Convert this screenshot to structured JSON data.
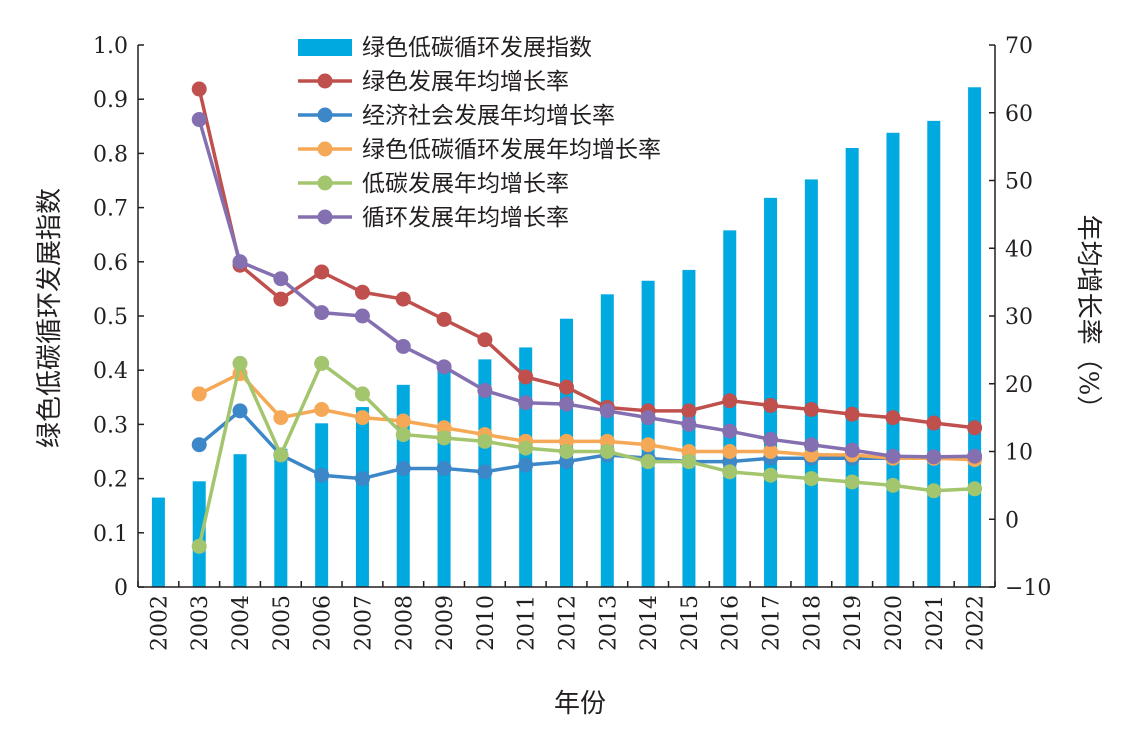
{
  "chart_data": {
    "type": "bar+line",
    "categories": [
      "2002",
      "2003",
      "2004",
      "2005",
      "2006",
      "2007",
      "2008",
      "2009",
      "2010",
      "2011",
      "2012",
      "2013",
      "2014",
      "2015",
      "2016",
      "2017",
      "2018",
      "2019",
      "2020",
      "2021",
      "2022"
    ],
    "xlabel": "年份",
    "ylabel_left": "绿色低碳循环发展指数",
    "ylabel_right": "年均增长率（%）",
    "ylim_left": [
      0,
      1.0
    ],
    "ylim_right": [
      -10,
      70
    ],
    "yticks_left": [
      "1.0",
      "0.9",
      "0.8",
      "0.7",
      "0.6",
      "0.5",
      "0.4",
      "0.3",
      "0.2",
      "0.1",
      "0"
    ],
    "yticks_right": [
      "70",
      "60",
      "50",
      "40",
      "30",
      "20",
      "10",
      "0",
      "−10"
    ],
    "legend_position": "top-center",
    "bar_series": {
      "name": "绿色低碳循环发展指数",
      "color": "#00a9e0",
      "axis": "left",
      "values": [
        0.165,
        0.195,
        0.245,
        0.255,
        0.302,
        0.332,
        0.373,
        0.414,
        0.42,
        0.442,
        0.495,
        0.54,
        0.565,
        0.585,
        0.658,
        0.718,
        0.752,
        0.81,
        0.838,
        0.86,
        0.922
      ]
    },
    "line_series": [
      {
        "name": "绿色发展年均增长率",
        "color": "#c0504d",
        "axis": "right",
        "values": [
          null,
          63.5,
          37.5,
          32.5,
          36.5,
          33.5,
          32.5,
          29.5,
          26.5,
          21.0,
          19.5,
          16.5,
          16.0,
          16.0,
          17.5,
          16.8,
          16.2,
          15.5,
          15.0,
          14.2,
          13.5
        ]
      },
      {
        "name": "经济社会发展年均增长率",
        "color": "#3c87c7",
        "axis": "right",
        "values": [
          null,
          11.0,
          16.0,
          9.5,
          6.5,
          6.0,
          7.5,
          7.5,
          7.0,
          8.0,
          8.5,
          9.5,
          9.0,
          8.5,
          8.5,
          9.0,
          9.0,
          9.0,
          9.0,
          9.0,
          9.0
        ]
      },
      {
        "name": "绿色低碳循环发展年均增长率",
        "color": "#f5a855",
        "axis": "right",
        "values": [
          null,
          18.5,
          21.5,
          15.0,
          16.2,
          15.0,
          14.5,
          13.5,
          12.5,
          11.5,
          11.5,
          11.5,
          11.0,
          10.0,
          10.0,
          10.0,
          9.5,
          9.5,
          9.0,
          9.0,
          8.8
        ]
      },
      {
        "name": "低碳发展年均增长率",
        "color": "#a3c56e",
        "axis": "right",
        "values": [
          null,
          -4.0,
          23.0,
          9.5,
          23.0,
          18.5,
          12.5,
          12.0,
          11.5,
          10.5,
          10.0,
          10.0,
          8.5,
          8.5,
          7.0,
          6.5,
          6.0,
          5.5,
          5.0,
          4.2,
          4.5
        ]
      },
      {
        "name": "循环发展年均增长率",
        "color": "#8470b0",
        "axis": "right",
        "values": [
          null,
          59.0,
          38.0,
          35.5,
          30.5,
          30.0,
          25.5,
          22.5,
          19.0,
          17.2,
          17.0,
          16.0,
          15.0,
          14.0,
          13.0,
          11.8,
          11.0,
          10.2,
          9.3,
          9.2,
          9.3
        ]
      }
    ]
  }
}
